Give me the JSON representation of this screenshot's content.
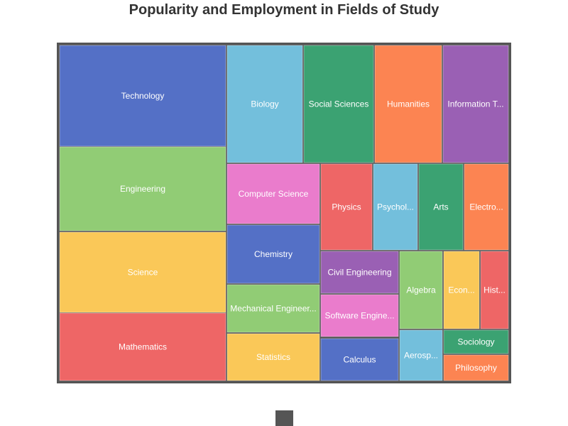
{
  "title": "Popularity and Employment in Fields of Study",
  "colors": {
    "blue": "#5470c6",
    "lightblue": "#73bfdc",
    "green": "#3ba272",
    "orange": "#fc8452",
    "purple": "#9a60b4",
    "lightgreen": "#91cc75",
    "yellow": "#fac858",
    "red": "#ee6666",
    "pink": "#ea7ccc",
    "border": "#555555"
  },
  "legend": {
    "icon": "roundRect",
    "color": "#555555",
    "position": "bottom-center"
  },
  "chart_data": {
    "type": "treemap",
    "series": [
      {
        "name": "Technology",
        "value": 100,
        "color": "blue"
      },
      {
        "name": "Engineering",
        "value": 85,
        "color": "lightgreen"
      },
      {
        "name": "Science",
        "value": 80,
        "color": "yellow"
      },
      {
        "name": "Mathematics",
        "value": 67,
        "color": "red"
      },
      {
        "name": "Biology",
        "value": 50,
        "color": "lightblue"
      },
      {
        "name": "Social Sciences",
        "value": 47,
        "color": "green"
      },
      {
        "name": "Humanities",
        "value": 44,
        "color": "orange"
      },
      {
        "name": "Information Technology",
        "value": 42,
        "color": "purple"
      },
      {
        "name": "Computer Science",
        "value": 40,
        "color": "pink"
      },
      {
        "name": "Chemistry",
        "value": 38,
        "color": "blue"
      },
      {
        "name": "Mechanical Engineering",
        "value": 30,
        "color": "lightgreen"
      },
      {
        "name": "Statistics",
        "value": 28,
        "color": "yellow"
      },
      {
        "name": "Physics",
        "value": 30,
        "color": "red"
      },
      {
        "name": "Psychology",
        "value": 25,
        "color": "lightblue"
      },
      {
        "name": "Arts",
        "value": 25,
        "color": "green"
      },
      {
        "name": "Electronics",
        "value": 25,
        "color": "orange"
      },
      {
        "name": "Civil Engineering",
        "value": 20,
        "color": "purple"
      },
      {
        "name": "Software Engineering",
        "value": 22,
        "color": "pink"
      },
      {
        "name": "Calculus",
        "value": 20,
        "color": "blue"
      },
      {
        "name": "Algebra",
        "value": 20,
        "color": "lightgreen"
      },
      {
        "name": "Economics",
        "value": 20,
        "color": "yellow"
      },
      {
        "name": "History",
        "value": 18,
        "color": "red"
      },
      {
        "name": "Aerospace",
        "value": 12,
        "color": "lightblue"
      },
      {
        "name": "Sociology",
        "value": 8,
        "color": "green"
      },
      {
        "name": "Philosophy",
        "value": 8,
        "color": "orange"
      }
    ]
  }
}
